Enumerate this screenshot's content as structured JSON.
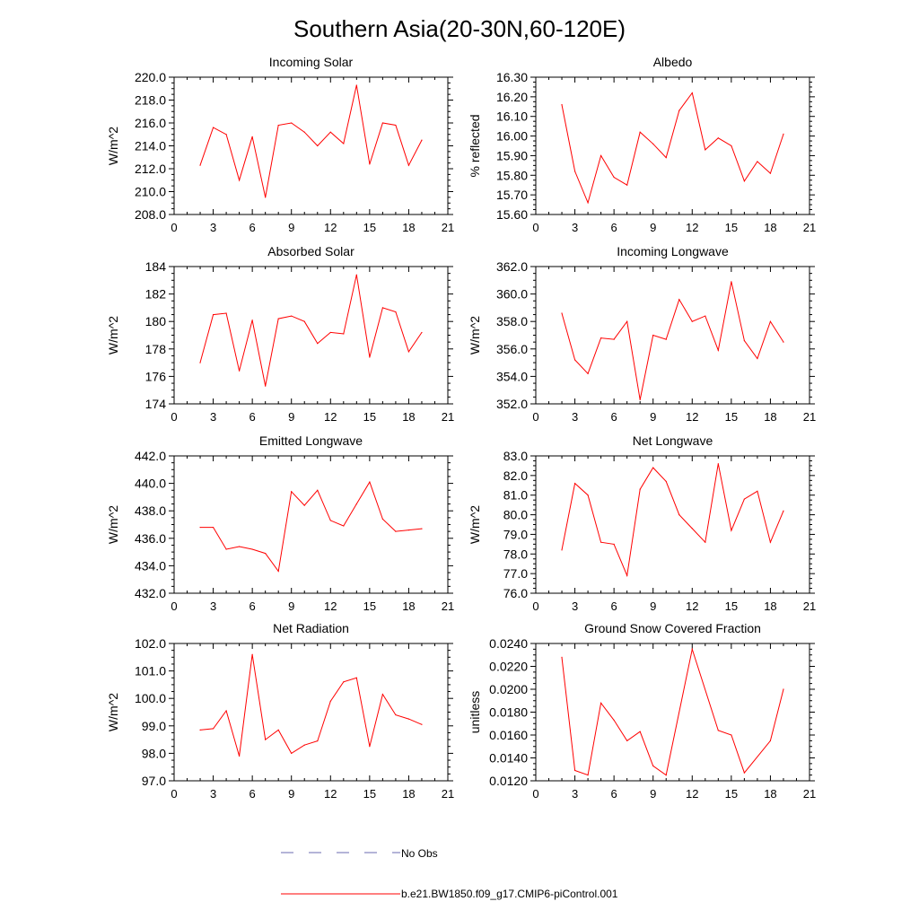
{
  "figure": {
    "title": "Southern Asia(20-30N,60-120E)",
    "legend": {
      "entries": [
        {
          "label": "No Obs",
          "color": "#6a6ab0",
          "dash": true
        },
        {
          "label": "b.e21.BW1850.f09_g17.CMIP6-piControl.001",
          "color": "#ff0000",
          "dash": false
        }
      ]
    },
    "series_color": "#ff0000"
  },
  "chart_data": [
    {
      "type": "line",
      "title": "Incoming Solar",
      "ylabel": "W/m^2",
      "xlabel": "",
      "xlim": [
        0,
        21
      ],
      "xticks": [
        0,
        3,
        6,
        9,
        12,
        15,
        18,
        21
      ],
      "xtick_labels": [
        "0",
        "3",
        "6",
        "9",
        "12",
        "15",
        "18",
        "21"
      ],
      "ylim": [
        208,
        220
      ],
      "yticks": [
        208,
        210,
        212,
        214,
        216,
        218,
        220
      ],
      "ytick_labels": [
        "208.0",
        "210.0",
        "212.0",
        "214.0",
        "216.0",
        "218.0",
        "220.0"
      ],
      "x": [
        2,
        3,
        4,
        5,
        6,
        7,
        8,
        9,
        10,
        11,
        12,
        13,
        14,
        15,
        16,
        17,
        18,
        19
      ],
      "values": [
        212.3,
        215.6,
        215.0,
        211.0,
        214.8,
        209.5,
        215.8,
        216.0,
        215.2,
        214.0,
        215.2,
        214.2,
        219.3,
        212.4,
        216.0,
        215.8,
        212.3,
        214.5
      ]
    },
    {
      "type": "line",
      "title": "Albedo",
      "ylabel": "% reflected",
      "xlabel": "",
      "xlim": [
        0,
        21
      ],
      "xticks": [
        0,
        3,
        6,
        9,
        12,
        15,
        18,
        21
      ],
      "xtick_labels": [
        "0",
        "3",
        "6",
        "9",
        "12",
        "15",
        "18",
        "21"
      ],
      "ylim": [
        15.6,
        16.3
      ],
      "yticks": [
        15.6,
        15.7,
        15.8,
        15.9,
        16.0,
        16.1,
        16.2,
        16.3
      ],
      "ytick_labels": [
        "15.60",
        "15.70",
        "15.80",
        "15.90",
        "16.00",
        "16.10",
        "16.20",
        "16.30"
      ],
      "x": [
        2,
        3,
        4,
        5,
        6,
        7,
        8,
        9,
        10,
        11,
        12,
        13,
        14,
        15,
        16,
        17,
        18,
        19
      ],
      "values": [
        16.16,
        15.82,
        15.66,
        15.9,
        15.79,
        15.75,
        16.02,
        15.96,
        15.89,
        16.13,
        16.22,
        15.93,
        15.99,
        15.95,
        15.77,
        15.87,
        15.81,
        16.01
      ]
    },
    {
      "type": "line",
      "title": "Absorbed Solar",
      "ylabel": "W/m^2",
      "xlabel": "",
      "xlim": [
        0,
        21
      ],
      "xticks": [
        0,
        3,
        6,
        9,
        12,
        15,
        18,
        21
      ],
      "xtick_labels": [
        "0",
        "3",
        "6",
        "9",
        "12",
        "15",
        "18",
        "21"
      ],
      "ylim": [
        174,
        184
      ],
      "yticks": [
        174,
        176,
        178,
        180,
        182,
        184
      ],
      "ytick_labels": [
        "174",
        "176",
        "178",
        "180",
        "182",
        "184"
      ],
      "x": [
        2,
        3,
        4,
        5,
        6,
        7,
        8,
        9,
        10,
        11,
        12,
        13,
        14,
        15,
        16,
        17,
        18,
        19
      ],
      "values": [
        177.0,
        180.5,
        180.6,
        176.4,
        180.1,
        175.3,
        180.2,
        180.4,
        180.0,
        178.4,
        179.2,
        179.1,
        183.4,
        177.4,
        181.0,
        180.7,
        177.8,
        179.2
      ]
    },
    {
      "type": "line",
      "title": "Incoming Longwave",
      "ylabel": "W/m^2",
      "xlabel": "",
      "xlim": [
        0,
        21
      ],
      "xticks": [
        0,
        3,
        6,
        9,
        12,
        15,
        18,
        21
      ],
      "xtick_labels": [
        "0",
        "3",
        "6",
        "9",
        "12",
        "15",
        "18",
        "21"
      ],
      "ylim": [
        352,
        362
      ],
      "yticks": [
        352,
        354,
        356,
        358,
        360,
        362
      ],
      "ytick_labels": [
        "352.0",
        "354.0",
        "356.0",
        "358.0",
        "360.0",
        "362.0"
      ],
      "x": [
        2,
        3,
        4,
        5,
        6,
        7,
        8,
        9,
        10,
        11,
        12,
        13,
        14,
        15,
        16,
        17,
        18,
        19
      ],
      "values": [
        358.6,
        355.2,
        354.2,
        356.8,
        356.7,
        358.0,
        352.3,
        357.0,
        356.7,
        359.6,
        358.0,
        358.4,
        355.9,
        360.9,
        356.6,
        355.3,
        358.0,
        356.5
      ]
    },
    {
      "type": "line",
      "title": "Emitted Longwave",
      "ylabel": "W/m^2",
      "xlabel": "",
      "xlim": [
        0,
        21
      ],
      "xticks": [
        0,
        3,
        6,
        9,
        12,
        15,
        18,
        21
      ],
      "xtick_labels": [
        "0",
        "3",
        "6",
        "9",
        "12",
        "15",
        "18",
        "21"
      ],
      "ylim": [
        432,
        442
      ],
      "yticks": [
        432,
        434,
        436,
        438,
        440,
        442
      ],
      "ytick_labels": [
        "432.0",
        "434.0",
        "436.0",
        "438.0",
        "440.0",
        "442.0"
      ],
      "x": [
        2,
        3,
        4,
        5,
        6,
        7,
        8,
        9,
        10,
        11,
        12,
        13,
        14,
        15,
        16,
        17,
        18,
        19
      ],
      "values": [
        436.8,
        436.8,
        435.2,
        435.4,
        435.2,
        434.9,
        433.6,
        439.4,
        438.4,
        439.5,
        437.3,
        436.9,
        438.5,
        440.1,
        437.4,
        436.5,
        436.6,
        436.7
      ]
    },
    {
      "type": "line",
      "title": "Net Longwave",
      "ylabel": "W/m^2",
      "xlabel": "",
      "xlim": [
        0,
        21
      ],
      "xticks": [
        0,
        3,
        6,
        9,
        12,
        15,
        18,
        21
      ],
      "xtick_labels": [
        "0",
        "3",
        "6",
        "9",
        "12",
        "15",
        "18",
        "21"
      ],
      "ylim": [
        76,
        83
      ],
      "yticks": [
        76,
        77,
        78,
        79,
        80,
        81,
        82,
        83
      ],
      "ytick_labels": [
        "76.0",
        "77.0",
        "78.0",
        "79.0",
        "80.0",
        "81.0",
        "82.0",
        "83.0"
      ],
      "x": [
        2,
        3,
        4,
        5,
        6,
        7,
        8,
        9,
        10,
        11,
        12,
        13,
        14,
        15,
        16,
        17,
        18,
        19
      ],
      "values": [
        78.2,
        81.6,
        81.0,
        78.6,
        78.5,
        76.9,
        81.3,
        82.4,
        81.7,
        80.0,
        79.3,
        78.6,
        82.6,
        79.2,
        80.8,
        81.2,
        78.6,
        80.2
      ]
    },
    {
      "type": "line",
      "title": "Net Radiation",
      "ylabel": "W/m^2",
      "xlabel": "",
      "xlim": [
        0,
        21
      ],
      "xticks": [
        0,
        3,
        6,
        9,
        12,
        15,
        18,
        21
      ],
      "xtick_labels": [
        "0",
        "3",
        "6",
        "9",
        "12",
        "15",
        "18",
        "21"
      ],
      "ylim": [
        97,
        102
      ],
      "yticks": [
        97,
        98,
        99,
        100,
        101,
        102
      ],
      "ytick_labels": [
        "97.0",
        "98.0",
        "99.0",
        "100.0",
        "101.0",
        "102.0"
      ],
      "x": [
        2,
        3,
        4,
        5,
        6,
        7,
        8,
        9,
        10,
        11,
        12,
        13,
        14,
        15,
        16,
        17,
        18,
        19
      ],
      "values": [
        98.85,
        98.9,
        99.55,
        97.9,
        101.6,
        98.5,
        98.85,
        98.0,
        98.3,
        98.45,
        99.9,
        100.6,
        100.75,
        98.25,
        100.15,
        99.4,
        99.25,
        99.05
      ]
    },
    {
      "type": "line",
      "title": "Ground Snow Covered Fraction",
      "ylabel": "unitless",
      "xlabel": "",
      "xlim": [
        0,
        21
      ],
      "xticks": [
        0,
        3,
        6,
        9,
        12,
        15,
        18,
        21
      ],
      "xtick_labels": [
        "0",
        "3",
        "6",
        "9",
        "12",
        "15",
        "18",
        "21"
      ],
      "ylim": [
        0.012,
        0.024
      ],
      "yticks": [
        0.012,
        0.014,
        0.016,
        0.018,
        0.02,
        0.022,
        0.024
      ],
      "ytick_labels": [
        "0.0120",
        "0.0140",
        "0.0160",
        "0.0180",
        "0.0200",
        "0.0220",
        "0.0240"
      ],
      "x": [
        2,
        3,
        4,
        5,
        6,
        7,
        8,
        9,
        10,
        12,
        14,
        15,
        16,
        18,
        19
      ],
      "values": [
        0.0228,
        0.0129,
        0.0125,
        0.0188,
        0.0173,
        0.0155,
        0.0163,
        0.0133,
        0.0125,
        0.0235,
        0.0164,
        0.016,
        0.0127,
        0.0155,
        0.02
      ]
    }
  ]
}
